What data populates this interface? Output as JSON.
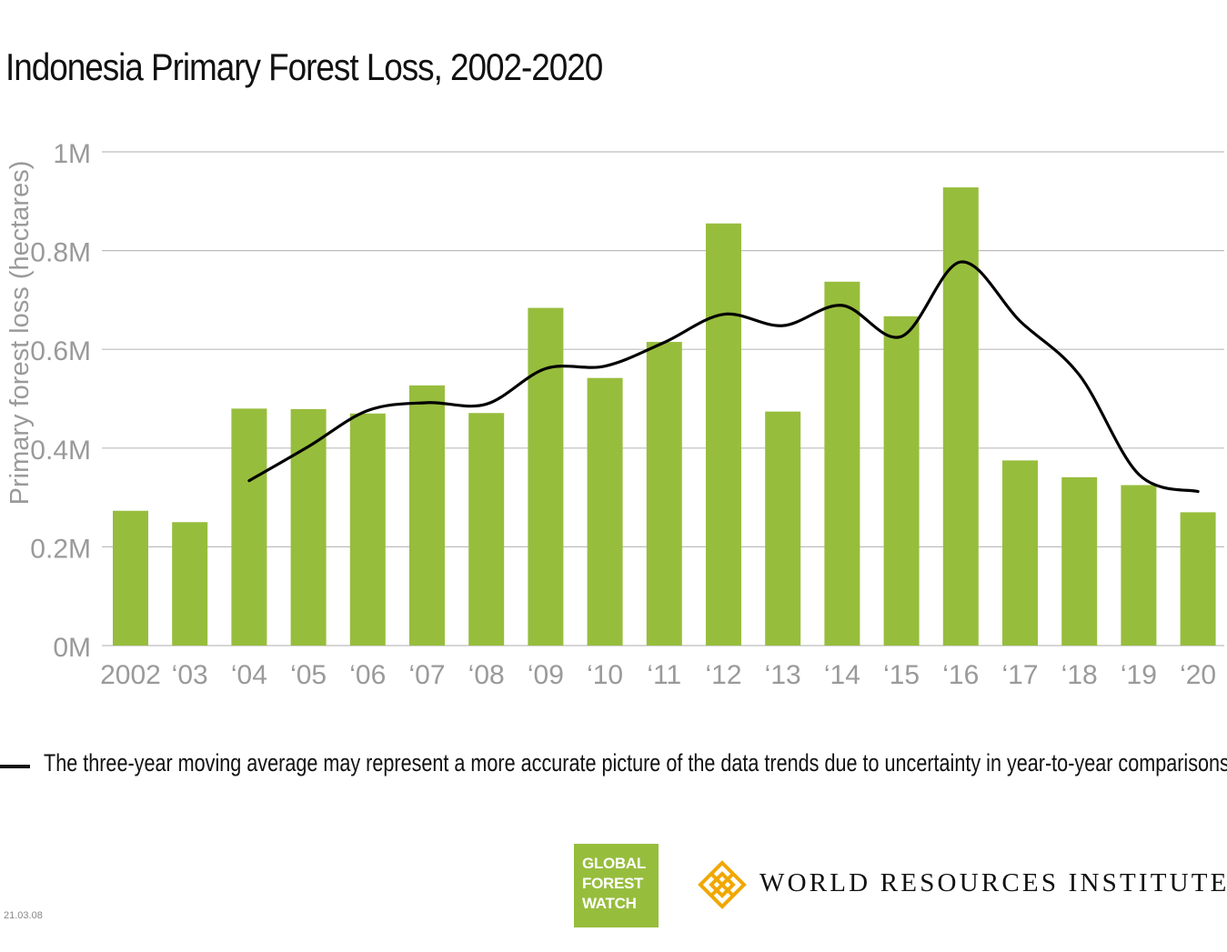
{
  "title": "Indonesia Primary Forest Loss, 2002-2020",
  "chart_data": {
    "type": "bar",
    "title": "Indonesia Primary Forest Loss, 2002-2020",
    "xlabel": "",
    "ylabel": "Primary forest loss (hectares)",
    "ylim": [
      0,
      1000000
    ],
    "yticks": [
      {
        "value": 0,
        "label": "0M"
      },
      {
        "value": 200000,
        "label": "0.2M"
      },
      {
        "value": 400000,
        "label": "0.4M"
      },
      {
        "value": 600000,
        "label": "0.6M"
      },
      {
        "value": 800000,
        "label": "0.8M"
      },
      {
        "value": 1000000,
        "label": "1M"
      }
    ],
    "grid": true,
    "categories": [
      "2002",
      "‘03",
      "‘04",
      "‘05",
      "‘06",
      "‘07",
      "‘08",
      "‘09",
      "‘10",
      "‘11",
      "‘12",
      "‘13",
      "‘14",
      "‘15",
      "‘16",
      "‘17",
      "‘18",
      "‘19",
      "‘20"
    ],
    "series": [
      {
        "name": "Primary forest loss",
        "type": "bar",
        "color": "#97bd3d",
        "values": [
          273000,
          250000,
          480000,
          479000,
          470000,
          527000,
          471000,
          684000,
          542000,
          615000,
          855000,
          474000,
          737000,
          667000,
          928000,
          375000,
          341000,
          325000,
          270000
        ]
      },
      {
        "name": "Three-year moving average",
        "type": "line",
        "color": "#000000",
        "values": [
          null,
          null,
          334000,
          403000,
          476000,
          492000,
          489000,
          561000,
          566000,
          614000,
          671000,
          648000,
          689000,
          626000,
          777000,
          657000,
          548000,
          347000,
          312000
        ]
      }
    ]
  },
  "legend": {
    "text": "The three-year moving average may represent a more accurate picture of the data trends due to uncertainty in year-to-year comparisons."
  },
  "logos": {
    "gfw": [
      "GLOBAL",
      "FOREST",
      "WATCH"
    ],
    "wri": "WORLD RESOURCES INSTITUTE"
  },
  "footer_code": "21.03.08",
  "colors": {
    "bar": "#97bd3d",
    "line": "#000000",
    "grid": "#bdbdbd",
    "tick": "#9a9a9a",
    "logo_orange": "#f0a800"
  }
}
